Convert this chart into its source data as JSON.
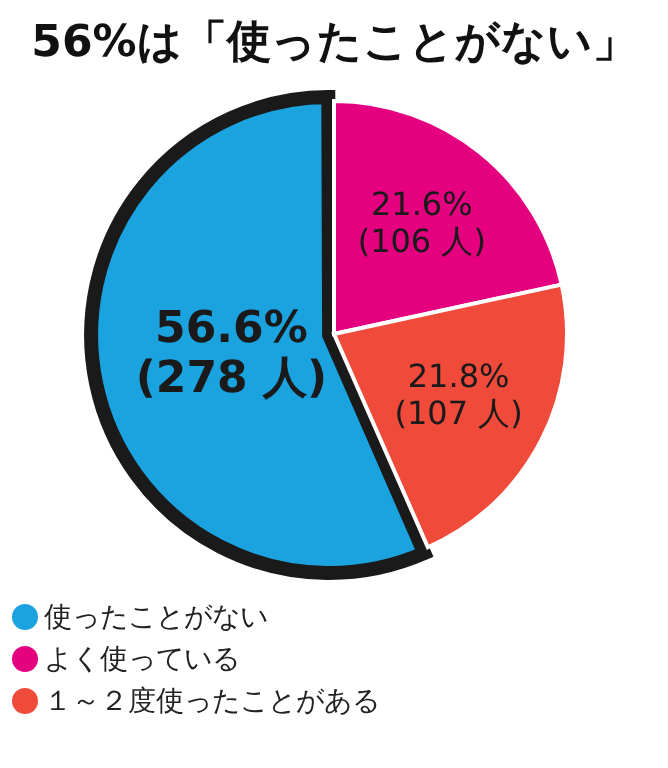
{
  "chart_data": {
    "type": "pie",
    "title": "56%は「使ったことがない」",
    "categories": [
      "使ったことがない",
      "よく使っている",
      "１～２度使ったことがある"
    ],
    "values": [
      56.6,
      21.6,
      21.8
    ],
    "value_labels": [
      "56.6%\n(278 人)",
      "21.6%\n(106 人)",
      "21.8%\n(107 人)"
    ],
    "colors": [
      "#1ba3e0",
      "#e4007f",
      "#ef4a3a"
    ],
    "legend": "bottom"
  }
}
